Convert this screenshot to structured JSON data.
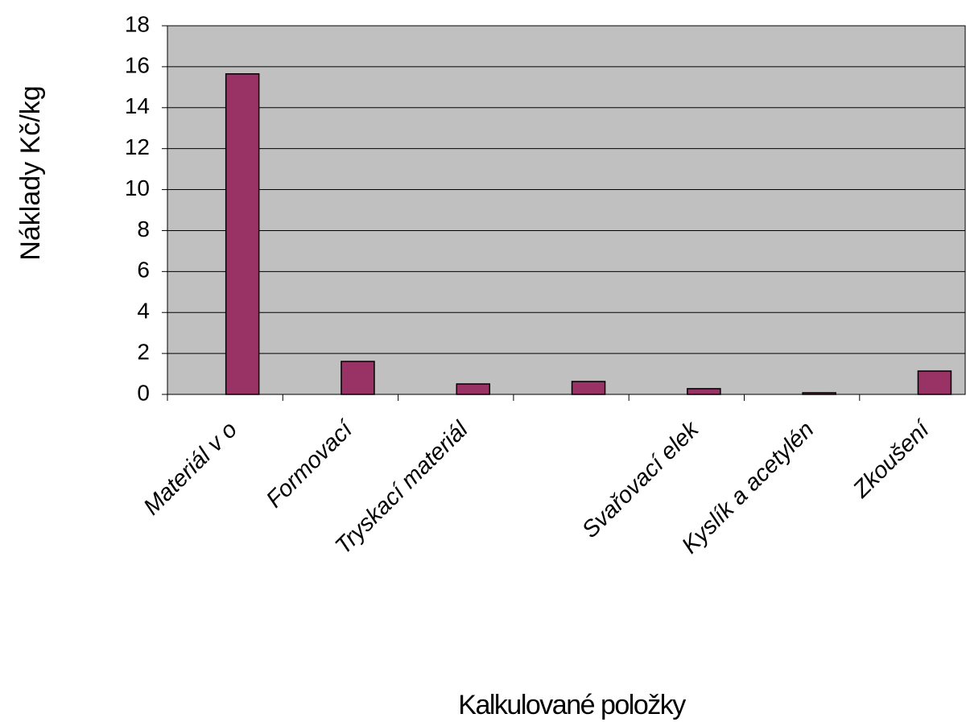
{
  "chart_data": {
    "type": "bar",
    "y_axis_label": "Náklady Kč/kg",
    "x_axis_label": "Kalkulované položky",
    "categories": [
      "Materiál v o",
      "Formovací",
      "Tryskací materiál",
      null,
      "Svařovací elek",
      "Kyslík a acetylén",
      "Zkoušení"
    ],
    "values": [
      15.65,
      1.61,
      0.51,
      0.63,
      0.28,
      0.08,
      1.14
    ],
    "color": "#993366",
    "ylim": [
      0,
      18
    ],
    "yticks": [
      0,
      2,
      4,
      6,
      8,
      10,
      12,
      14,
      16,
      18
    ],
    "grid": true
  }
}
